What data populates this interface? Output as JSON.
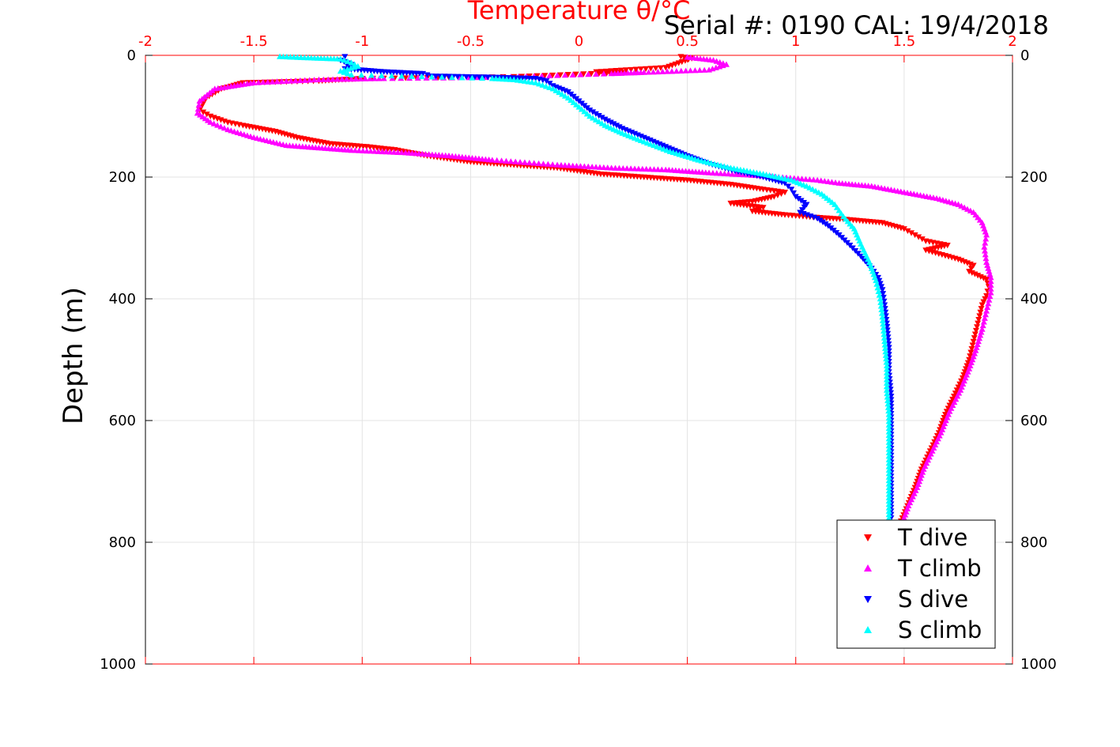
{
  "annotation": "Serial #: 0190  CAL: 19/4/2018",
  "chart_data": {
    "type": "scatter",
    "title": "",
    "xlabel": "Temperature θ/°C",
    "ylabel": "Depth (m)",
    "xlim": [
      -2,
      2
    ],
    "ylim": [
      0,
      1000
    ],
    "y_reversed": true,
    "x_axis_position": "top",
    "y_axis_both_sides": true,
    "grid": true,
    "x_ticks": [
      "-2",
      "-1.5",
      "-1",
      "-0.5",
      "0",
      "0.5",
      "1",
      "1.5",
      "2"
    ],
    "y_ticks": [
      "0",
      "200",
      "400",
      "600",
      "800",
      "1000"
    ],
    "legend_position": "bottom-right",
    "series": [
      {
        "name": "T dive",
        "marker": "triangle-down",
        "color": "#ff0000",
        "points": [
          [
            0.47,
            2
          ],
          [
            0.52,
            5
          ],
          [
            0.4,
            20
          ],
          [
            0.08,
            27
          ],
          [
            0.2,
            28
          ],
          [
            -0.3,
            35
          ],
          [
            -1.0,
            38
          ],
          [
            -1.2,
            42
          ],
          [
            -1.55,
            45
          ],
          [
            -1.65,
            55
          ],
          [
            -1.72,
            70
          ],
          [
            -1.75,
            90
          ],
          [
            -1.7,
            100
          ],
          [
            -1.62,
            110
          ],
          [
            -1.55,
            115
          ],
          [
            -1.4,
            125
          ],
          [
            -1.3,
            135
          ],
          [
            -1.15,
            145
          ],
          [
            -0.98,
            150
          ],
          [
            -0.85,
            155
          ],
          [
            -0.7,
            165
          ],
          [
            -0.5,
            175
          ],
          [
            -0.3,
            180
          ],
          [
            -0.1,
            185
          ],
          [
            0.1,
            195
          ],
          [
            0.3,
            200
          ],
          [
            0.5,
            205
          ],
          [
            0.7,
            212
          ],
          [
            0.85,
            220
          ],
          [
            0.95,
            225
          ],
          [
            0.9,
            232
          ],
          [
            0.8,
            240
          ],
          [
            0.7,
            243
          ],
          [
            0.85,
            250
          ],
          [
            0.8,
            256
          ],
          [
            0.95,
            262
          ],
          [
            1.05,
            265
          ],
          [
            1.25,
            270
          ],
          [
            1.4,
            275
          ],
          [
            1.5,
            285
          ],
          [
            1.55,
            295
          ],
          [
            1.6,
            305
          ],
          [
            1.7,
            312
          ],
          [
            1.6,
            320
          ],
          [
            1.75,
            335
          ],
          [
            1.82,
            345
          ],
          [
            1.8,
            355
          ],
          [
            1.88,
            368
          ],
          [
            1.89,
            380
          ],
          [
            1.88,
            395
          ],
          [
            1.86,
            410
          ],
          [
            1.84,
            440
          ],
          [
            1.82,
            470
          ],
          [
            1.8,
            500
          ],
          [
            1.77,
            530
          ],
          [
            1.73,
            560
          ],
          [
            1.69,
            590
          ],
          [
            1.66,
            620
          ],
          [
            1.62,
            650
          ],
          [
            1.58,
            680
          ],
          [
            1.55,
            710
          ],
          [
            1.51,
            745
          ],
          [
            1.48,
            770
          ]
        ]
      },
      {
        "name": "T climb",
        "marker": "triangle-up",
        "color": "#ff00ff",
        "points": [
          [
            0.5,
            3
          ],
          [
            0.62,
            8
          ],
          [
            0.68,
            15
          ],
          [
            0.6,
            24
          ],
          [
            0.3,
            28
          ],
          [
            0.15,
            30
          ],
          [
            -0.35,
            36
          ],
          [
            -0.9,
            38
          ],
          [
            -1.2,
            40
          ],
          [
            -1.5,
            45
          ],
          [
            -1.68,
            55
          ],
          [
            -1.75,
            75
          ],
          [
            -1.76,
            95
          ],
          [
            -1.7,
            110
          ],
          [
            -1.62,
            122
          ],
          [
            -1.5,
            135
          ],
          [
            -1.35,
            148
          ],
          [
            -1.2,
            152
          ],
          [
            -1.05,
            156
          ],
          [
            -0.8,
            160
          ],
          [
            -0.6,
            165
          ],
          [
            -0.4,
            172
          ],
          [
            -0.1,
            180
          ],
          [
            0.15,
            185
          ],
          [
            0.4,
            188
          ],
          [
            0.6,
            193
          ],
          [
            0.85,
            198
          ],
          [
            1.1,
            205
          ],
          [
            1.2,
            210
          ],
          [
            1.35,
            215
          ],
          [
            1.5,
            225
          ],
          [
            1.65,
            235
          ],
          [
            1.75,
            245
          ],
          [
            1.82,
            258
          ],
          [
            1.86,
            275
          ],
          [
            1.88,
            295
          ],
          [
            1.87,
            315
          ],
          [
            1.88,
            340
          ],
          [
            1.9,
            365
          ],
          [
            1.9,
            390
          ],
          [
            1.88,
            420
          ],
          [
            1.86,
            450
          ],
          [
            1.83,
            485
          ],
          [
            1.8,
            515
          ],
          [
            1.76,
            550
          ],
          [
            1.71,
            585
          ],
          [
            1.67,
            620
          ],
          [
            1.63,
            650
          ],
          [
            1.59,
            680
          ],
          [
            1.56,
            710
          ],
          [
            1.52,
            740
          ],
          [
            1.49,
            770
          ]
        ]
      },
      {
        "name": "S dive",
        "marker": "triangle-down",
        "color": "#0000ff",
        "points": [
          [
            -1.08,
            2
          ],
          [
            -1.1,
            8
          ],
          [
            -1.05,
            15
          ],
          [
            -1.08,
            22
          ],
          [
            -0.9,
            27
          ],
          [
            -0.72,
            30
          ],
          [
            -0.68,
            34
          ],
          [
            -0.4,
            36
          ],
          [
            -0.2,
            38
          ],
          [
            -0.15,
            42
          ],
          [
            -0.12,
            50
          ],
          [
            -0.05,
            60
          ],
          [
            0.0,
            75
          ],
          [
            0.05,
            90
          ],
          [
            0.12,
            105
          ],
          [
            0.2,
            120
          ],
          [
            0.3,
            135
          ],
          [
            0.4,
            150
          ],
          [
            0.5,
            165
          ],
          [
            0.6,
            178
          ],
          [
            0.72,
            190
          ],
          [
            0.85,
            200
          ],
          [
            0.95,
            210
          ],
          [
            0.98,
            220
          ],
          [
            1.0,
            232
          ],
          [
            1.05,
            245
          ],
          [
            1.02,
            258
          ],
          [
            1.1,
            268
          ],
          [
            1.15,
            280
          ],
          [
            1.2,
            295
          ],
          [
            1.25,
            312
          ],
          [
            1.3,
            330
          ],
          [
            1.35,
            350
          ],
          [
            1.38,
            365
          ],
          [
            1.4,
            385
          ],
          [
            1.41,
            410
          ],
          [
            1.42,
            440
          ],
          [
            1.43,
            480
          ],
          [
            1.43,
            520
          ],
          [
            1.44,
            560
          ],
          [
            1.44,
            600
          ],
          [
            1.44,
            640
          ],
          [
            1.44,
            680
          ],
          [
            1.44,
            720
          ],
          [
            1.44,
            760
          ]
        ]
      },
      {
        "name": "S climb",
        "marker": "triangle-up",
        "color": "#00ffff",
        "points": [
          [
            -1.38,
            2
          ],
          [
            -1.25,
            4
          ],
          [
            -1.1,
            6
          ],
          [
            -1.05,
            12
          ],
          [
            -1.02,
            18
          ],
          [
            -1.1,
            26
          ],
          [
            -1.05,
            32
          ],
          [
            -0.4,
            38
          ],
          [
            -0.3,
            40
          ],
          [
            -0.2,
            45
          ],
          [
            -0.12,
            55
          ],
          [
            -0.05,
            70
          ],
          [
            0.0,
            85
          ],
          [
            0.05,
            100
          ],
          [
            0.12,
            115
          ],
          [
            0.2,
            128
          ],
          [
            0.3,
            142
          ],
          [
            0.42,
            158
          ],
          [
            0.55,
            172
          ],
          [
            0.7,
            185
          ],
          [
            0.85,
            195
          ],
          [
            0.98,
            205
          ],
          [
            1.05,
            215
          ],
          [
            1.12,
            228
          ],
          [
            1.18,
            245
          ],
          [
            1.22,
            265
          ],
          [
            1.27,
            285
          ],
          [
            1.3,
            310
          ],
          [
            1.34,
            340
          ],
          [
            1.37,
            370
          ],
          [
            1.39,
            400
          ],
          [
            1.4,
            430
          ],
          [
            1.41,
            470
          ],
          [
            1.42,
            510
          ],
          [
            1.42,
            550
          ],
          [
            1.43,
            590
          ],
          [
            1.43,
            630
          ],
          [
            1.43,
            670
          ],
          [
            1.43,
            710
          ],
          [
            1.43,
            760
          ]
        ]
      }
    ]
  }
}
